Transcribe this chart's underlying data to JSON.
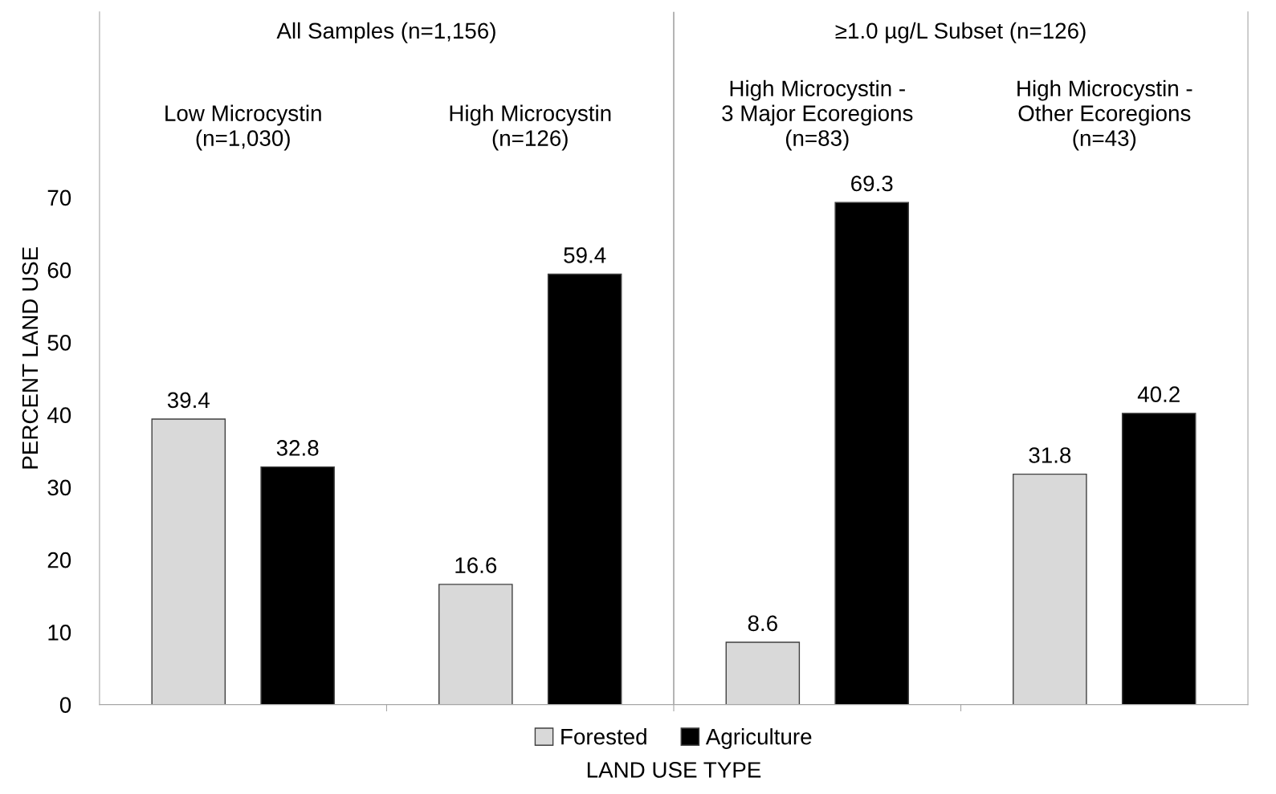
{
  "chart_data": {
    "type": "bar",
    "categories": [
      "Low Microcystin\n(n=1,030)",
      "High Microcystin\n(n=126)",
      "High Microcystin -\n3 Major Ecoregions\n(n=83)",
      "High Microcystin -\nOther Ecoregions\n(n=43)"
    ],
    "series": [
      {
        "name": "Forested",
        "color": "#d9d9d9",
        "values": [
          39.4,
          16.6,
          8.6,
          31.8
        ]
      },
      {
        "name": "Agriculture",
        "color": "#000000",
        "values": [
          32.8,
          59.4,
          69.3,
          40.2
        ]
      }
    ],
    "annotations": [
      "All Samples (n=1,156)",
      "≥1.0 µg/L Subset (n=126)"
    ],
    "xlabel": "LAND USE TYPE",
    "ylabel": "PERCENT LAND USE",
    "ylim": [
      0,
      95.6
    ],
    "yticks": [
      0,
      10,
      20,
      30,
      40,
      50,
      60,
      70
    ],
    "data_labels": true,
    "legend": "bottom",
    "grid": false
  }
}
